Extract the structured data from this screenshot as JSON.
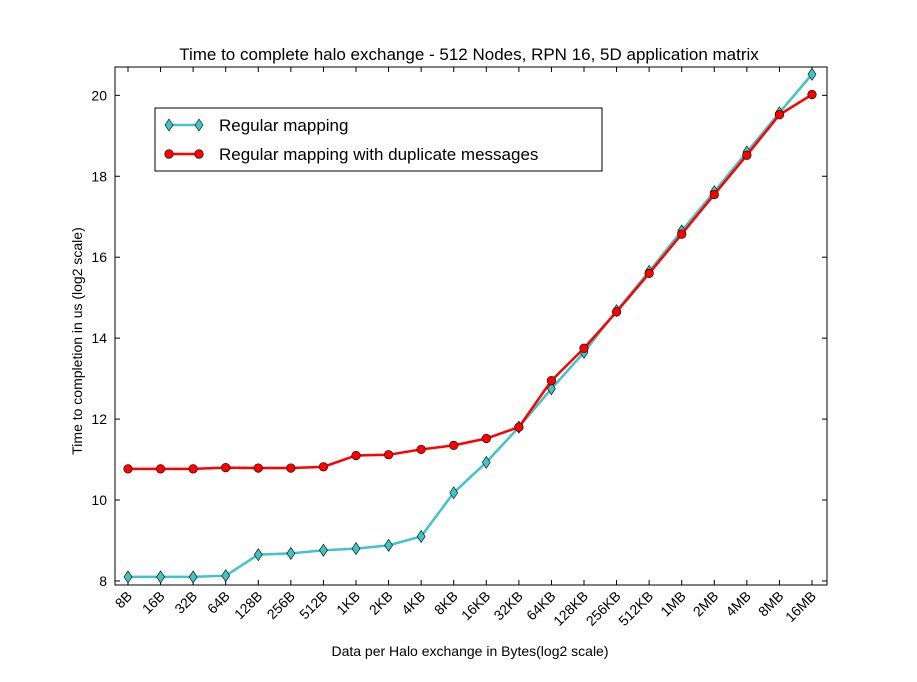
{
  "chart_data": {
    "type": "line",
    "title": "Time to complete halo exchange - 512 Nodes, RPN 16, 5D application matrix",
    "xlabel": "Data per Halo exchange in Bytes(log2 scale)",
    "ylabel": "Time to completion in us (log2 scale)",
    "categories": [
      "8B",
      "16B",
      "32B",
      "64B",
      "128B",
      "256B",
      "512B",
      "1KB",
      "2KB",
      "4KB",
      "8KB",
      "16KB",
      "32KB",
      "64KB",
      "128KB",
      "256KB",
      "512KB",
      "1MB",
      "2MB",
      "4MB",
      "8MB",
      "16MB"
    ],
    "ylim": [
      7.9,
      20.7
    ],
    "yticks": [
      8,
      10,
      12,
      14,
      16,
      18,
      20
    ],
    "legend_position": "top-left",
    "grid": false,
    "series": [
      {
        "name": "Regular mapping",
        "color": "#40c4c4",
        "marker": "diamond",
        "values": [
          8.1,
          8.1,
          8.1,
          8.13,
          8.65,
          8.68,
          8.76,
          8.8,
          8.88,
          9.1,
          10.18,
          10.93,
          11.8,
          12.75,
          13.65,
          14.68,
          15.65,
          16.65,
          17.62,
          18.6,
          19.57,
          20.52
        ]
      },
      {
        "name": "Regular mapping with duplicate messages",
        "color": "#ff0000",
        "marker": "circle",
        "values": [
          10.77,
          10.77,
          10.77,
          10.8,
          10.79,
          10.79,
          10.82,
          11.1,
          11.12,
          11.25,
          11.35,
          11.52,
          11.8,
          12.95,
          13.75,
          14.65,
          15.6,
          16.57,
          17.55,
          18.52,
          19.52,
          20.02
        ]
      }
    ]
  }
}
